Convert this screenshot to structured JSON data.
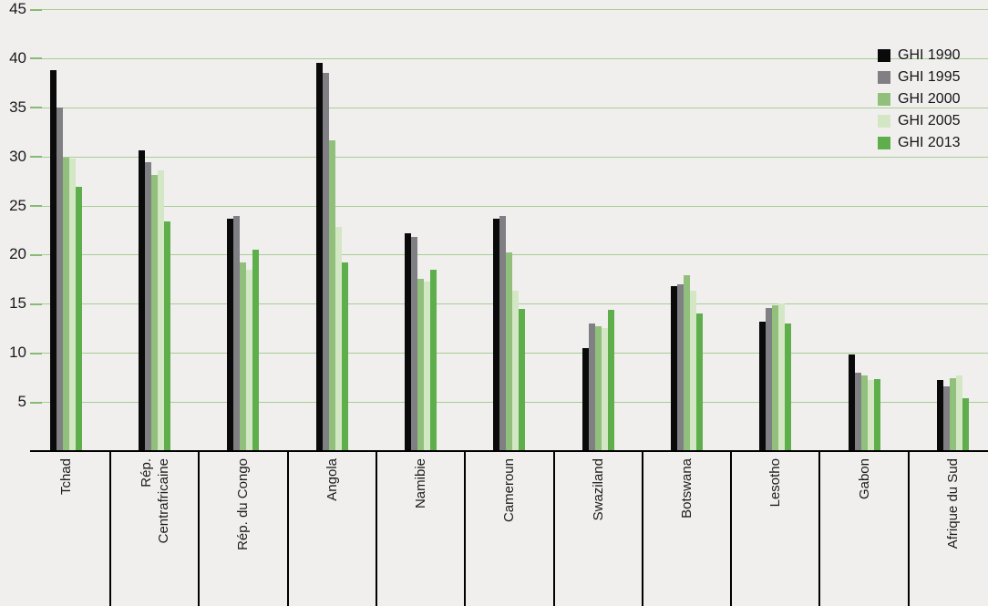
{
  "chart_data": {
    "type": "bar",
    "categories": [
      "Tchad",
      "Rép.\nCentrafricaine",
      "Rép. du Congo",
      "Angola",
      "Namibie",
      "Cameroun",
      "Swaziland",
      "Botswana",
      "Lesotho",
      "Gabon",
      "Afrique du Sud"
    ],
    "series": [
      {
        "name": "GHI 1990",
        "color": "#0a0a0a",
        "values": [
          38.8,
          30.6,
          23.7,
          39.5,
          22.2,
          23.7,
          10.5,
          16.8,
          13.2,
          9.8,
          7.2
        ]
      },
      {
        "name": "GHI 1995",
        "color": "#7f7f84",
        "values": [
          35.0,
          29.4,
          23.9,
          38.5,
          21.8,
          23.9,
          13.0,
          17.0,
          14.6,
          8.0,
          6.6
        ]
      },
      {
        "name": "GHI 2000",
        "color": "#90c07c",
        "values": [
          29.9,
          28.1,
          19.2,
          31.6,
          17.5,
          20.2,
          12.7,
          17.9,
          14.8,
          7.7,
          7.4
        ]
      },
      {
        "name": "GHI 2005",
        "color": "#d4e7c4",
        "values": [
          29.8,
          28.6,
          18.5,
          22.8,
          17.3,
          16.3,
          12.5,
          16.3,
          15.0,
          7.2,
          7.7
        ]
      },
      {
        "name": "GHI 2013",
        "color": "#5fae4c",
        "values": [
          26.9,
          23.4,
          20.5,
          19.2,
          18.5,
          14.5,
          14.4,
          14.0,
          13.0,
          7.3,
          5.4
        ]
      }
    ],
    "ylim": [
      0,
      45
    ],
    "y_axis_ticks": [
      5,
      10,
      15,
      20,
      25,
      30,
      35,
      40,
      45
    ],
    "grid": true,
    "legend_position": "top-right",
    "background_color": "#f0efee",
    "gridline_color": "#a6ce94"
  }
}
